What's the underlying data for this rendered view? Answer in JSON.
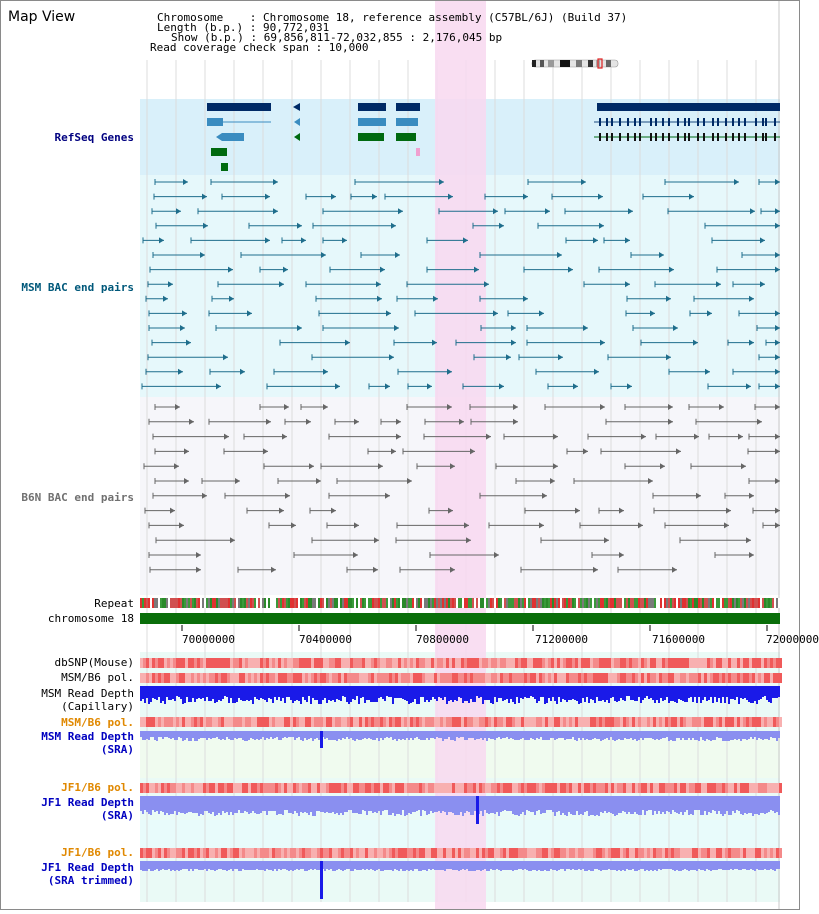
{
  "header": {
    "title": "Map View",
    "chromosome_line": "Chromosome    : Chromosome 18, reference assembly (C57BL/6J) (Build 37)",
    "length_line": "Length (b.p.) : 90,772,031",
    "show_line": "Show (b.p.) : 69,856,811-72,032,855 : 2,176,045 bp",
    "coverage_line": "Read coverage check span : 10,000"
  },
  "tracks": {
    "refseq": "RefSeq Genes",
    "msm_bac": "MSM BAC end pairs",
    "b6n_bac": "B6N BAC end pairs",
    "repeat": "Repeat",
    "chromosome": "chromosome 18",
    "dbsnp": "dbSNP(Mouse)",
    "msm_b6_pol": "MSM/B6 pol.",
    "msm_depth_cap_1": "MSM Read Depth",
    "msm_depth_cap_2": "(Capillary)",
    "msm_b6_pol_2": "MSM/B6 pol.",
    "msm_depth_sra_1": "MSM Read Depth",
    "msm_depth_sra_2": "(SRA)",
    "jf1_b6_pol": "JF1/B6 pol.",
    "jf1_depth_1": "JF1 Read Depth",
    "jf1_depth_2": "(SRA)",
    "jf1_b6_pol_2": "JF1/B6 pol.",
    "jf1_trim_1": "JF1 Read Depth",
    "jf1_trim_2": "(SRA trimmed)"
  },
  "axis": {
    "ticks": [
      "70000000",
      "70400000",
      "70800000",
      "71200000",
      "71600000",
      "72000000"
    ]
  },
  "colors": {
    "refseq_bg": "#d9f0fa",
    "msm_bg": "#e6f8fb",
    "b6n_bg": "#f6f6fa",
    "highlight": "#f8d8f0",
    "gene_dark": "#002a66",
    "gene_mid": "#3a8cc0",
    "gene_green": "#006a10",
    "msm_line": "#1f6e8c",
    "b6n_line": "#666666",
    "chrom_bar": "#0a6e0a",
    "depth_blue": "#1a1ae8",
    "depth_light": "#8a8ff0"
  }
}
